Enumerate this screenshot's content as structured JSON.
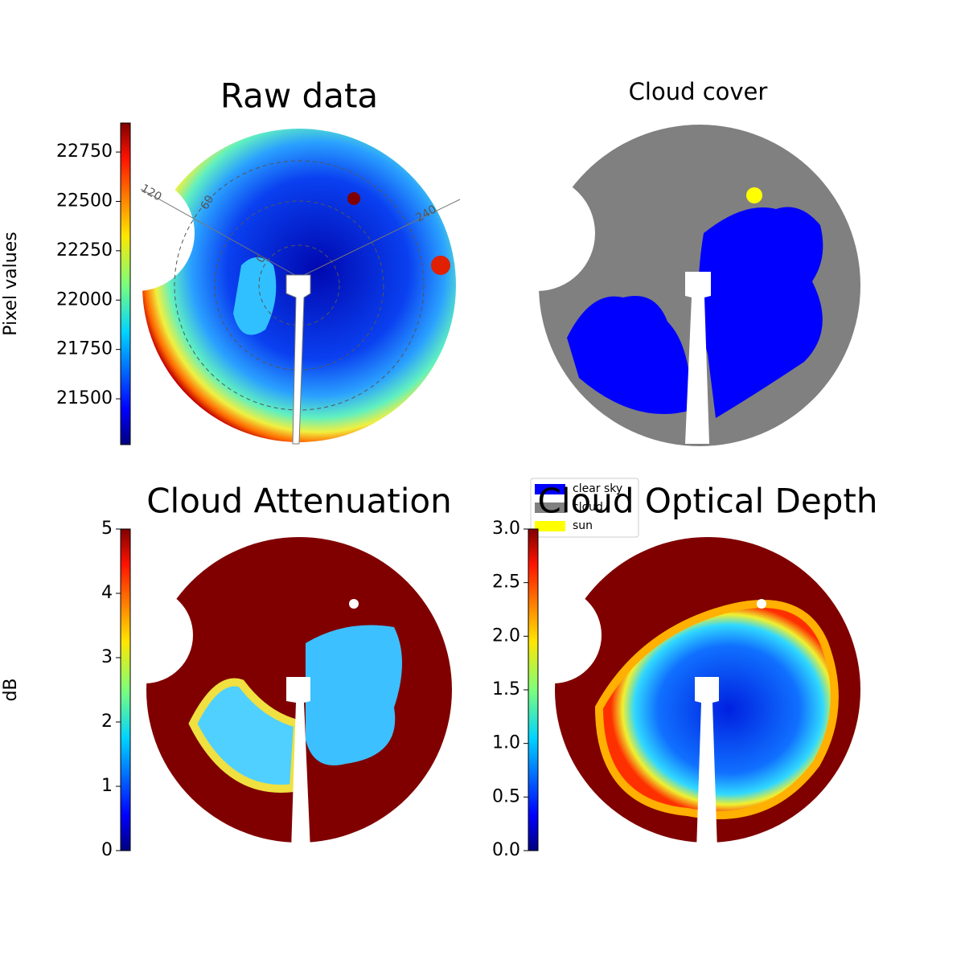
{
  "chart_data": [
    {
      "type": "image",
      "title": "Raw data",
      "colorbar": {
        "label": "Pixel values",
        "colormap": "jet",
        "ylim": [
          21268,
          22897
        ],
        "yticks": [
          21500,
          21750,
          22000,
          22250,
          22500,
          22750
        ]
      },
      "annotations": [
        "120",
        "60",
        "0",
        "240"
      ]
    },
    {
      "type": "image",
      "title": "Cloud cover",
      "legend": [
        {
          "name": "clear sky",
          "color": "#0000ff"
        },
        {
          "name": "cloud",
          "color": "#808080"
        },
        {
          "name": "sun",
          "color": "#ffff00"
        }
      ]
    },
    {
      "type": "image",
      "title": "Cloud Attenuation",
      "colorbar": {
        "label": "dB",
        "colormap": "jet",
        "ylim": [
          0,
          5
        ],
        "yticks": [
          0,
          1,
          2,
          3,
          4,
          5
        ]
      }
    },
    {
      "type": "image",
      "title": "Cloud Optical Depth",
      "colorbar": {
        "colormap": "jet",
        "ylim": [
          0,
          3
        ],
        "yticks": [
          {
            "value": 0,
            "label": "0.0"
          },
          0.5,
          {
            "value": 1,
            "label": "1.0"
          },
          1.5,
          {
            "value": 2,
            "label": "2.0"
          },
          2.5,
          {
            "value": 3,
            "label": "3.0"
          }
        ]
      }
    }
  ]
}
